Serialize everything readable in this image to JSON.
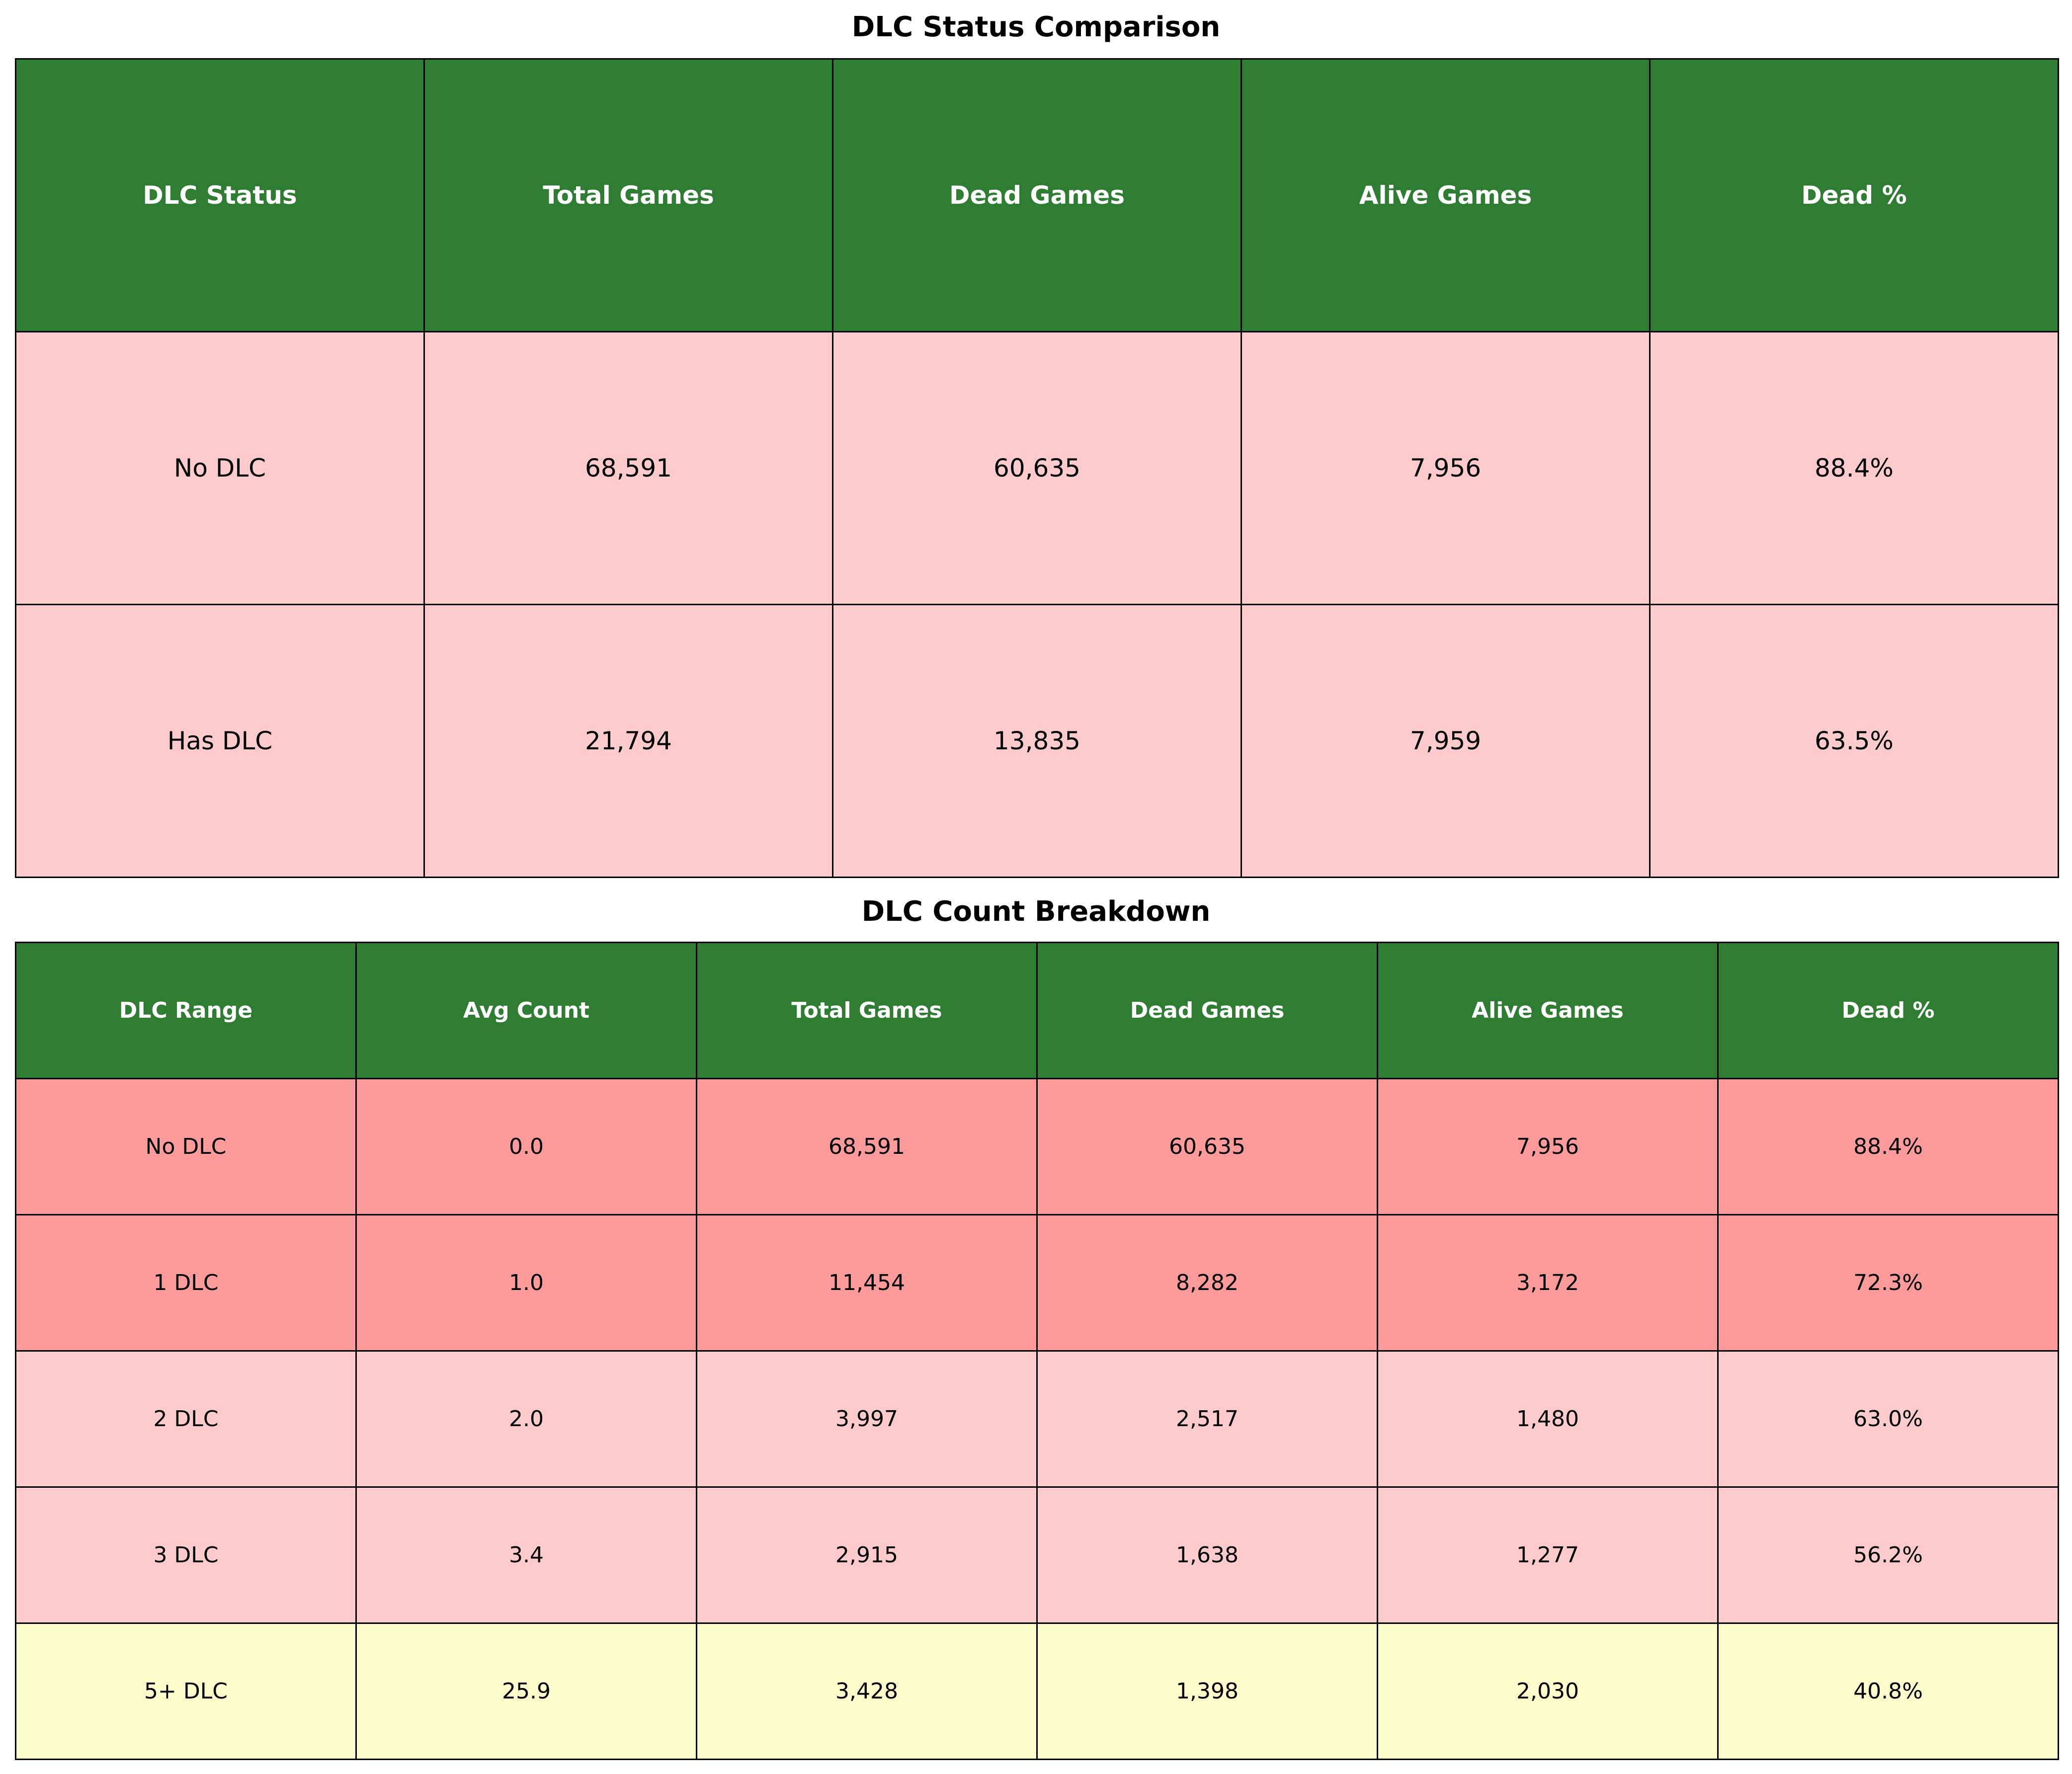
{
  "chart_data": [
    {
      "type": "table",
      "title": "DLC Status Comparison",
      "columns": [
        "DLC Status",
        "Total Games",
        "Dead Games",
        "Alive Games",
        "Dead %"
      ],
      "rows": [
        [
          "No DLC",
          "68,591",
          "60,635",
          "7,956",
          "88.4%"
        ],
        [
          "Has DLC",
          "21,794",
          "13,835",
          "7,959",
          "63.5%"
        ]
      ],
      "row_colors": [
        "#fdcbcb",
        "#fdcbcb"
      ]
    },
    {
      "type": "table",
      "title": "DLC Count Breakdown",
      "columns": [
        "DLC Range",
        "Avg Count",
        "Total Games",
        "Dead Games",
        "Alive Games",
        "Dead %"
      ],
      "rows": [
        [
          "No DLC",
          "0.0",
          "68,591",
          "60,635",
          "7,956",
          "88.4%"
        ],
        [
          "1 DLC",
          "1.0",
          "11,454",
          "8,282",
          "3,172",
          "72.3%"
        ],
        [
          "2 DLC",
          "2.0",
          "3,997",
          "2,517",
          "1,480",
          "63.0%"
        ],
        [
          "3 DLC",
          "3.4",
          "2,915",
          "1,638",
          "1,277",
          "56.2%"
        ],
        [
          "5+ DLC",
          "25.9",
          "3,428",
          "1,398",
          "2,030",
          "40.8%"
        ]
      ],
      "row_colors": [
        "#fd9a9a",
        "#fd9a9a",
        "#fdcbcb",
        "#fdcbcb",
        "#fdfdcb"
      ]
    }
  ],
  "colors": {
    "header": "#2f7d33",
    "header_text": "#ffffff",
    "border": "#000000"
  }
}
